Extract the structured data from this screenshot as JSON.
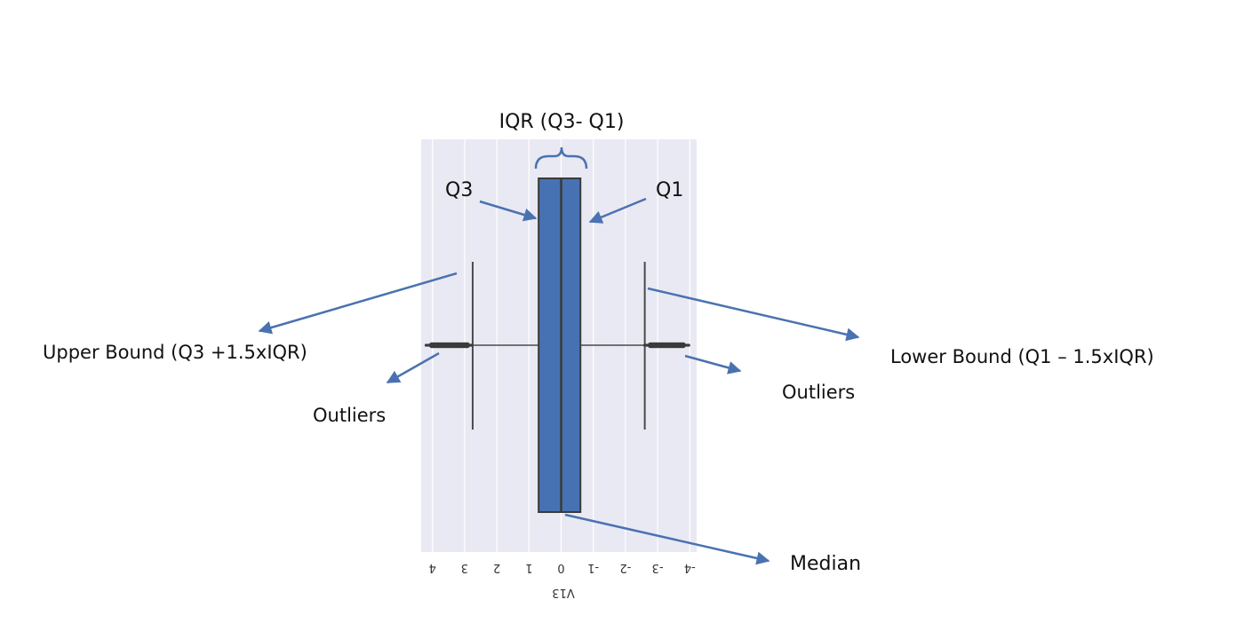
{
  "colors": {
    "plot_bg": "#e9e9f3",
    "grid": "#ffffff",
    "box_fill": "#4672b4",
    "box_edge": "#3a3a3a",
    "arrow": "#4a72b0",
    "text": "#111111"
  },
  "annotations": {
    "iqr": "IQR (Q3- Q1)",
    "q3": "Q3",
    "q1": "Q1",
    "upper_bound": "Upper Bound (Q3 +1.5xIQR)",
    "lower_bound": "Lower Bound (Q1 – 1.5xIQR)",
    "outliers_left": "Outliers",
    "outliers_right": "Outliers",
    "median": "Median"
  },
  "chart_data": {
    "type": "box",
    "orientation": "horizontal, mirrored (axis runs 4 to -4 left to right)",
    "xlabel": "V13",
    "ticks": [
      "4",
      "3",
      "2",
      "1",
      "0",
      "-1",
      "-2",
      "-3",
      "-4"
    ],
    "box": {
      "q1": -0.6,
      "median": 0.0,
      "q3": 0.7,
      "upper_whisker": 2.75,
      "lower_whisker": -2.6
    },
    "outlier_ranges": [
      [
        2.75,
        4.2
      ],
      [
        -4.0,
        -2.6
      ]
    ]
  }
}
